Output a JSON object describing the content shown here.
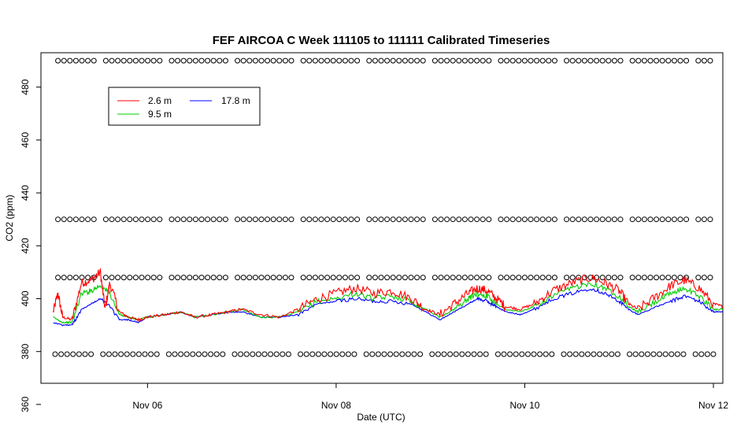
{
  "chart_data": {
    "type": "line",
    "title": "FEF AIRCOA C  Week 111105 to 111111  Calibrated Timeseries",
    "xlabel": "Date (UTC)",
    "ylabel": "CO2 (ppm)",
    "x_ticks": [
      "Nov 06",
      "Nov 08",
      "Nov 10",
      "Nov 12"
    ],
    "y_ticks": [
      360,
      380,
      400,
      420,
      440,
      460,
      480
    ],
    "xlim_days": [
      -0.13,
      7.1
    ],
    "ylim": [
      368,
      493
    ],
    "grid": false,
    "legend": {
      "placement": "top-left",
      "entries": [
        {
          "name": "2.6 m",
          "color": "#ff0000"
        },
        {
          "name": "9.5 m",
          "color": "#00cc00"
        },
        {
          "name": "17.8 m",
          "color": "#0000ff"
        }
      ]
    },
    "series": [
      {
        "name": "2.6 m",
        "color": "#ff0000",
        "points": [
          [
            0.0,
            395
          ],
          [
            0.05,
            402
          ],
          [
            0.1,
            393
          ],
          [
            0.2,
            392
          ],
          [
            0.3,
            406
          ],
          [
            0.4,
            407
          ],
          [
            0.5,
            410
          ],
          [
            0.55,
            396
          ],
          [
            0.6,
            406
          ],
          [
            0.7,
            395
          ],
          [
            0.8,
            393
          ],
          [
            0.9,
            392
          ],
          [
            1.0,
            393
          ],
          [
            1.2,
            394
          ],
          [
            1.35,
            395
          ],
          [
            1.5,
            393
          ],
          [
            1.7,
            394
          ],
          [
            1.85,
            395
          ],
          [
            2.0,
            396
          ],
          [
            2.2,
            394
          ],
          [
            2.4,
            393
          ],
          [
            2.6,
            396
          ],
          [
            2.8,
            400
          ],
          [
            3.0,
            402
          ],
          [
            3.2,
            404
          ],
          [
            3.4,
            402
          ],
          [
            3.6,
            403
          ],
          [
            3.8,
            400
          ],
          [
            3.95,
            396
          ],
          [
            4.1,
            394
          ],
          [
            4.25,
            398
          ],
          [
            4.4,
            402
          ],
          [
            4.5,
            404
          ],
          [
            4.6,
            403
          ],
          [
            4.7,
            400
          ],
          [
            4.8,
            397
          ],
          [
            4.95,
            396
          ],
          [
            5.1,
            398
          ],
          [
            5.3,
            403
          ],
          [
            5.5,
            406
          ],
          [
            5.7,
            408
          ],
          [
            5.85,
            406
          ],
          [
            6.0,
            403
          ],
          [
            6.1,
            398
          ],
          [
            6.2,
            396
          ],
          [
            6.4,
            401
          ],
          [
            6.55,
            405
          ],
          [
            6.7,
            407
          ],
          [
            6.85,
            404
          ],
          [
            7.0,
            398
          ],
          [
            7.1,
            397
          ]
        ]
      },
      {
        "name": "9.5 m",
        "color": "#00cc00",
        "points": [
          [
            0.0,
            393
          ],
          [
            0.1,
            391
          ],
          [
            0.2,
            391
          ],
          [
            0.3,
            402
          ],
          [
            0.4,
            403
          ],
          [
            0.5,
            405
          ],
          [
            0.6,
            402
          ],
          [
            0.7,
            394
          ],
          [
            0.8,
            393
          ],
          [
            0.9,
            392
          ],
          [
            1.0,
            393
          ],
          [
            1.2,
            394
          ],
          [
            1.35,
            395
          ],
          [
            1.5,
            393
          ],
          [
            1.7,
            394
          ],
          [
            1.85,
            395
          ],
          [
            2.0,
            396
          ],
          [
            2.2,
            393
          ],
          [
            2.4,
            393
          ],
          [
            2.6,
            395
          ],
          [
            2.8,
            399
          ],
          [
            3.0,
            400
          ],
          [
            3.2,
            402
          ],
          [
            3.4,
            400
          ],
          [
            3.6,
            401
          ],
          [
            3.8,
            399
          ],
          [
            3.95,
            396
          ],
          [
            4.1,
            393
          ],
          [
            4.25,
            396
          ],
          [
            4.4,
            400
          ],
          [
            4.5,
            402
          ],
          [
            4.6,
            401
          ],
          [
            4.7,
            398
          ],
          [
            4.8,
            396
          ],
          [
            4.95,
            395
          ],
          [
            5.1,
            397
          ],
          [
            5.3,
            401
          ],
          [
            5.5,
            404
          ],
          [
            5.7,
            406
          ],
          [
            5.85,
            404
          ],
          [
            6.0,
            401
          ],
          [
            6.1,
            397
          ],
          [
            6.2,
            395
          ],
          [
            6.4,
            399
          ],
          [
            6.55,
            402
          ],
          [
            6.7,
            404
          ],
          [
            6.85,
            401
          ],
          [
            7.0,
            396
          ],
          [
            7.1,
            396
          ]
        ]
      },
      {
        "name": "17.8 m",
        "color": "#0000ff",
        "points": [
          [
            0.0,
            391
          ],
          [
            0.1,
            390
          ],
          [
            0.2,
            390
          ],
          [
            0.3,
            396
          ],
          [
            0.4,
            398
          ],
          [
            0.5,
            400
          ],
          [
            0.6,
            397
          ],
          [
            0.7,
            392
          ],
          [
            0.8,
            392
          ],
          [
            0.9,
            391
          ],
          [
            1.0,
            393
          ],
          [
            1.2,
            394
          ],
          [
            1.35,
            395
          ],
          [
            1.5,
            393
          ],
          [
            1.7,
            394
          ],
          [
            1.85,
            395
          ],
          [
            2.0,
            395
          ],
          [
            2.2,
            393
          ],
          [
            2.4,
            393
          ],
          [
            2.6,
            394
          ],
          [
            2.8,
            398
          ],
          [
            3.0,
            399
          ],
          [
            3.2,
            400
          ],
          [
            3.4,
            399
          ],
          [
            3.6,
            399
          ],
          [
            3.8,
            398
          ],
          [
            3.95,
            395
          ],
          [
            4.1,
            392
          ],
          [
            4.25,
            395
          ],
          [
            4.4,
            398
          ],
          [
            4.5,
            400
          ],
          [
            4.6,
            399
          ],
          [
            4.7,
            397
          ],
          [
            4.8,
            395
          ],
          [
            4.95,
            394
          ],
          [
            5.1,
            396
          ],
          [
            5.3,
            400
          ],
          [
            5.5,
            402
          ],
          [
            5.7,
            404
          ],
          [
            5.85,
            402
          ],
          [
            6.0,
            399
          ],
          [
            6.1,
            396
          ],
          [
            6.2,
            394
          ],
          [
            6.4,
            397
          ],
          [
            6.55,
            399
          ],
          [
            6.7,
            401
          ],
          [
            6.85,
            399
          ],
          [
            7.0,
            395
          ],
          [
            7.1,
            395
          ]
        ]
      }
    ],
    "calibration_markers": {
      "symbol": "open-circle",
      "levels": [
        379,
        408,
        430,
        490
      ]
    }
  }
}
